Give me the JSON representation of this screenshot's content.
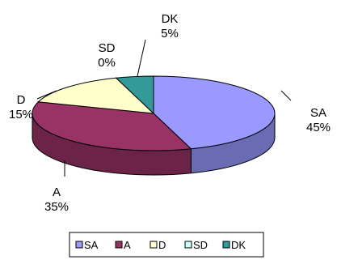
{
  "chart_data": {
    "type": "pie",
    "title": "",
    "labels": [
      "SA",
      "A",
      "D",
      "SD",
      "DK"
    ],
    "values": [
      45,
      35,
      15,
      0,
      5
    ],
    "value_labels": [
      "45%",
      "35%",
      "15%",
      "0%",
      "5%"
    ],
    "colors": [
      "#9999ff",
      "#993366",
      "#ffffcc",
      "#ccffff",
      "#339999"
    ],
    "legend_position": "bottom",
    "three_d": true
  }
}
